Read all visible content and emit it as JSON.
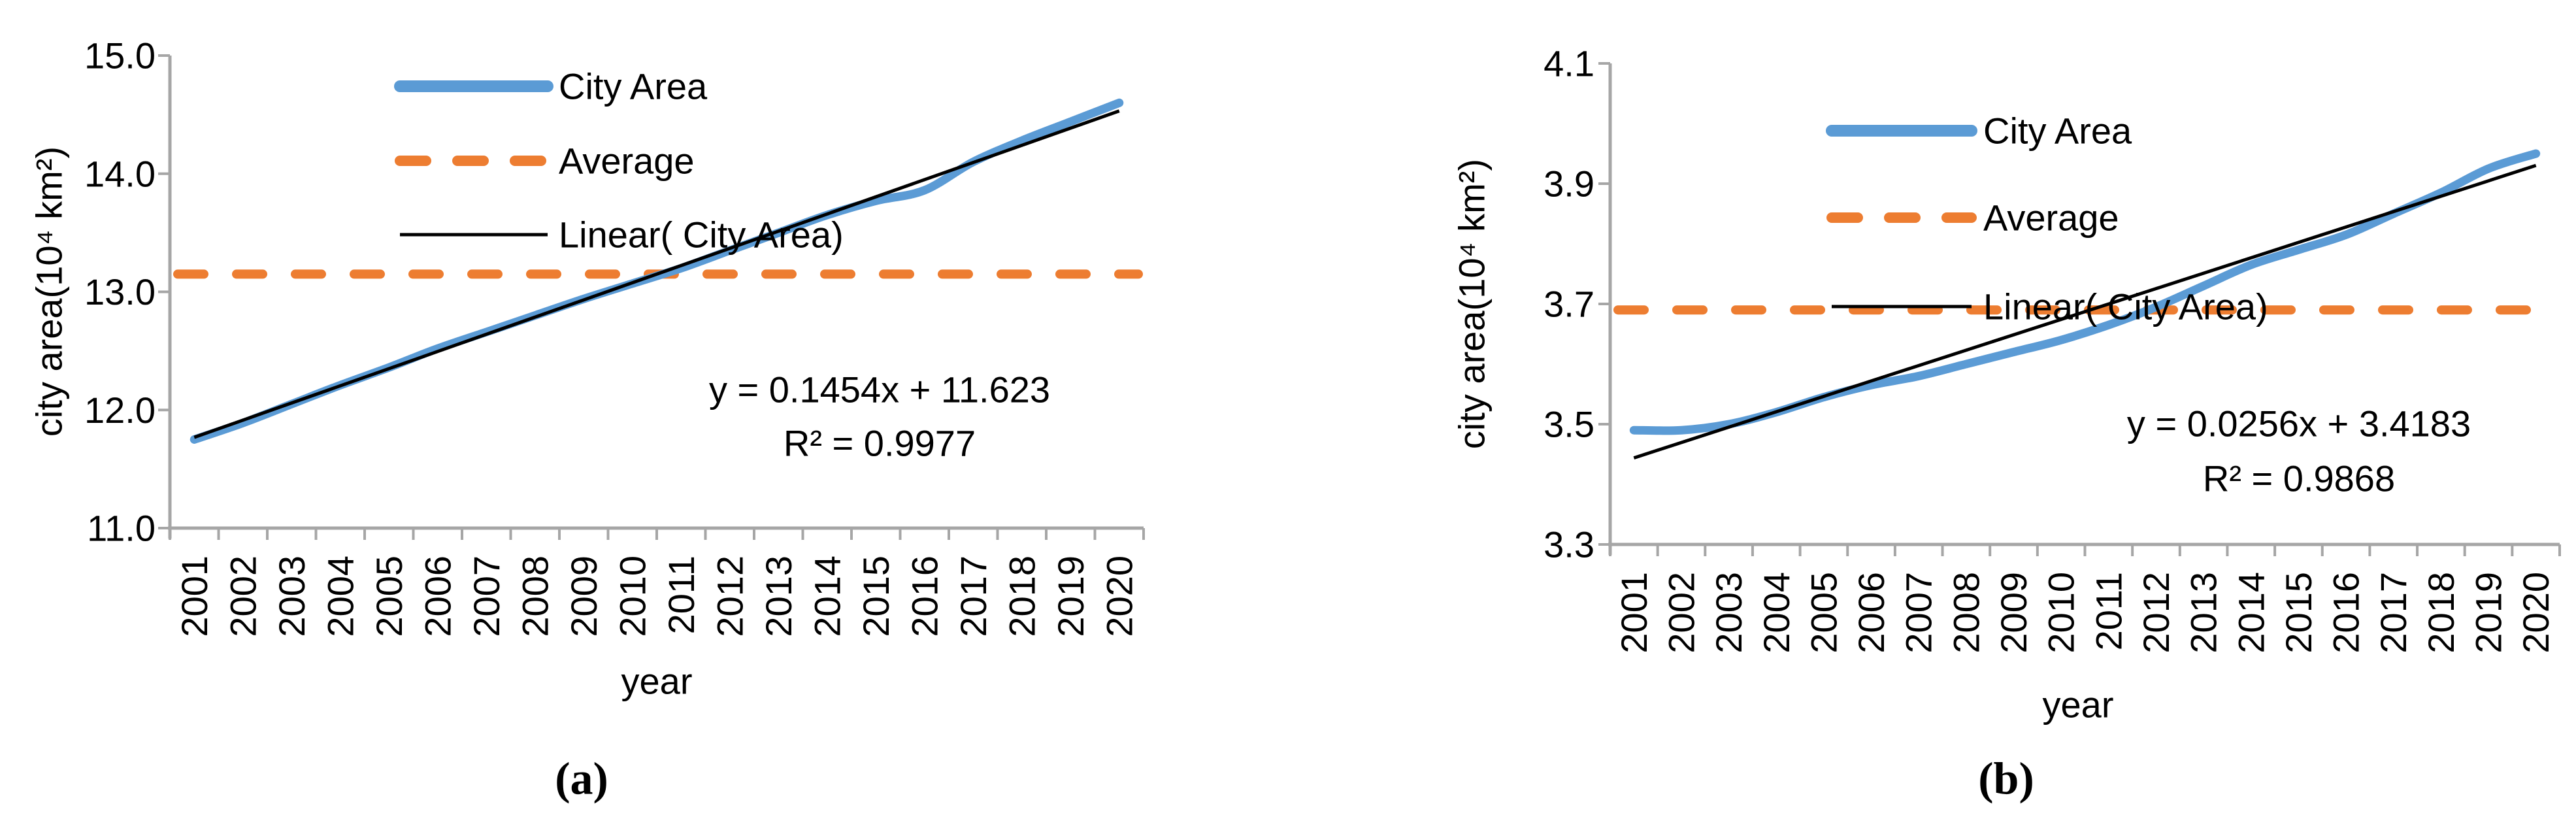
{
  "figure": {
    "background": "#ffffff",
    "description": "Two-panel line chart figure of city area change 2001-2020 with average line and linear trend"
  },
  "colors": {
    "city_area_line": "#5B9BD5",
    "average_line": "#ED7D31",
    "trend_line": "#000000",
    "axis": "#A6A6A6",
    "text": "#000000"
  },
  "chart_data": [
    {
      "panel": "a",
      "type": "line",
      "caption": "(a)",
      "xlabel": "year",
      "ylabel": "city area(10⁴ km²)",
      "equation": "y = 0.1454x + 11.623",
      "r_squared": "R² = 0.9977",
      "grid": false,
      "legend_position": "inside-top",
      "ylim": [
        11.0,
        15.0
      ],
      "yticks": [
        {
          "value": 15.0,
          "label": "15.0"
        },
        {
          "value": 14.0,
          "label": "14.0"
        },
        {
          "value": 13.0,
          "label": "13.0"
        },
        {
          "value": 12.0,
          "label": "12.0"
        },
        {
          "value": 11.0,
          "label": "11.0"
        }
      ],
      "years": [
        2001,
        2002,
        2003,
        2004,
        2005,
        2006,
        2007,
        2008,
        2009,
        2010,
        2011,
        2012,
        2013,
        2014,
        2015,
        2016,
        2017,
        2018,
        2019,
        2020
      ],
      "series": [
        {
          "name": "City Area",
          "style": "solid-thick",
          "values": [
            11.75,
            11.89,
            12.05,
            12.21,
            12.36,
            12.52,
            12.66,
            12.8,
            12.94,
            13.07,
            13.2,
            13.35,
            13.5,
            13.65,
            13.77,
            13.86,
            14.1,
            14.28,
            14.44,
            14.6
          ]
        },
        {
          "name": "Average",
          "style": "dashed",
          "value": 13.15
        },
        {
          "name": "Linear( City Area)",
          "style": "solid-thin",
          "slope": 0.1454,
          "intercept": 11.623
        }
      ]
    },
    {
      "panel": "b",
      "type": "line",
      "caption": "(b)",
      "xlabel": "year",
      "ylabel": "city area(10⁴ km²)",
      "equation": "y = 0.0256x + 3.4183",
      "r_squared": "R² = 0.9868",
      "grid": false,
      "legend_position": "inside-top",
      "ylim": [
        3.3,
        4.1
      ],
      "yticks": [
        {
          "value": 4.1,
          "label": "4.1"
        },
        {
          "value": 3.9,
          "label": "3.9"
        },
        {
          "value": 3.7,
          "label": "3.7"
        },
        {
          "value": 3.5,
          "label": "3.5"
        },
        {
          "value": 3.3,
          "label": "3.3"
        }
      ],
      "years": [
        2001,
        2002,
        2003,
        2004,
        2005,
        2006,
        2007,
        2008,
        2009,
        2010,
        2011,
        2012,
        2013,
        2014,
        2015,
        2016,
        2017,
        2018,
        2019,
        2020
      ],
      "series": [
        {
          "name": "City Area",
          "style": "solid-thick",
          "values": [
            3.49,
            3.49,
            3.5,
            3.52,
            3.545,
            3.565,
            3.58,
            3.6,
            3.62,
            3.64,
            3.665,
            3.695,
            3.73,
            3.765,
            3.79,
            3.815,
            3.85,
            3.885,
            3.925,
            3.95
          ]
        },
        {
          "name": "Average",
          "style": "dashed",
          "value": 3.69
        },
        {
          "name": "Linear( City Area)",
          "style": "solid-thin",
          "slope": 0.0256,
          "intercept": 3.4183
        }
      ]
    }
  ]
}
